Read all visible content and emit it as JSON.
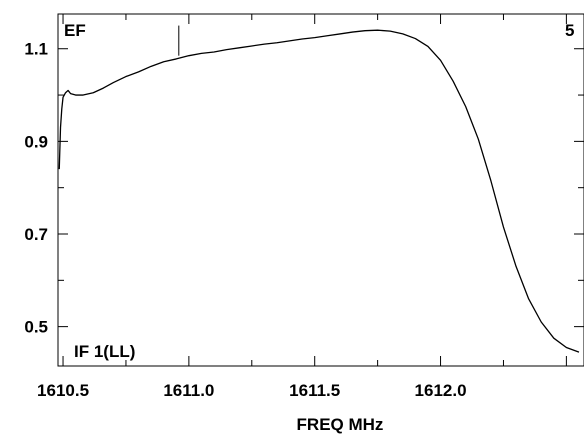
{
  "chart_data": {
    "type": "line",
    "title": "",
    "xlabel": "FREQ MHz",
    "ylabel": "",
    "xlim": [
      1610.48,
      1612.57
    ],
    "ylim": [
      0.415,
      1.175
    ],
    "x_ticks": [
      "1610.5",
      "1611.0",
      "1611.5",
      "1612.0"
    ],
    "x_tick_values": [
      1610.5,
      1611.0,
      1611.5,
      1612.0
    ],
    "y_ticks": [
      "0.5",
      "0.7",
      "0.9",
      "1.1"
    ],
    "y_tick_values": [
      0.5,
      0.7,
      0.9,
      1.1
    ],
    "grid": false,
    "annotations": {
      "top_left": "EF",
      "top_right": "5",
      "bottom_left": "IF 1(LL)"
    },
    "marker": {
      "x": 1610.96,
      "y_from": 1.085,
      "y_to": 1.15
    },
    "series": [
      {
        "color": "#000000",
        "points": [
          [
            1610.485,
            0.84
          ],
          [
            1610.49,
            0.93
          ],
          [
            1610.495,
            0.97
          ],
          [
            1610.5,
            0.995
          ],
          [
            1610.51,
            1.005
          ],
          [
            1610.52,
            1.01
          ],
          [
            1610.53,
            1.003
          ],
          [
            1610.55,
            1.0
          ],
          [
            1610.58,
            1.0
          ],
          [
            1610.62,
            1.005
          ],
          [
            1610.66,
            1.015
          ],
          [
            1610.7,
            1.027
          ],
          [
            1610.75,
            1.04
          ],
          [
            1610.8,
            1.05
          ],
          [
            1610.85,
            1.062
          ],
          [
            1610.9,
            1.072
          ],
          [
            1610.95,
            1.078
          ],
          [
            1611.0,
            1.085
          ],
          [
            1611.05,
            1.09
          ],
          [
            1611.1,
            1.093
          ],
          [
            1611.15,
            1.098
          ],
          [
            1611.2,
            1.102
          ],
          [
            1611.25,
            1.106
          ],
          [
            1611.3,
            1.11
          ],
          [
            1611.35,
            1.113
          ],
          [
            1611.4,
            1.117
          ],
          [
            1611.45,
            1.121
          ],
          [
            1611.5,
            1.124
          ],
          [
            1611.55,
            1.128
          ],
          [
            1611.6,
            1.132
          ],
          [
            1611.65,
            1.136
          ],
          [
            1611.7,
            1.139
          ],
          [
            1611.75,
            1.14
          ],
          [
            1611.8,
            1.138
          ],
          [
            1611.85,
            1.132
          ],
          [
            1611.9,
            1.122
          ],
          [
            1611.95,
            1.105
          ],
          [
            1612.0,
            1.075
          ],
          [
            1612.05,
            1.03
          ],
          [
            1612.1,
            0.975
          ],
          [
            1612.15,
            0.905
          ],
          [
            1612.2,
            0.815
          ],
          [
            1612.25,
            0.715
          ],
          [
            1612.3,
            0.63
          ],
          [
            1612.35,
            0.56
          ],
          [
            1612.4,
            0.51
          ],
          [
            1612.45,
            0.475
          ],
          [
            1612.5,
            0.455
          ],
          [
            1612.55,
            0.445
          ]
        ]
      }
    ]
  }
}
